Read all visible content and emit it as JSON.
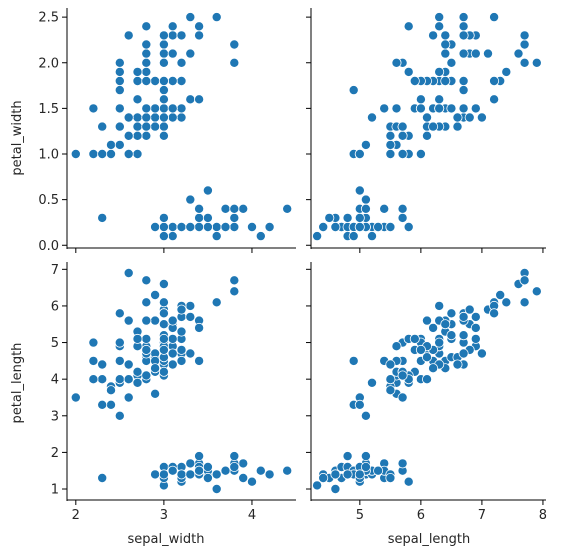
{
  "chart_data": {
    "type": "scatter",
    "point_color": "#1f77b4",
    "grid": false,
    "panels": [
      {
        "id": "pw-vs-sw",
        "x": "sepal_width",
        "y": "petal_width",
        "xlim": [
          1.9,
          4.5
        ],
        "ylim": [
          -0.03,
          2.6
        ],
        "xticks": [],
        "yticks": [
          "0.0",
          "0.5",
          "1.0",
          "1.5",
          "2.0",
          "2.5"
        ]
      },
      {
        "id": "pw-vs-sl",
        "x": "sepal_length",
        "y": "petal_width",
        "xlim": [
          4.2,
          8.05
        ],
        "ylim": [
          -0.03,
          2.6
        ],
        "xticks": [],
        "yticks": []
      },
      {
        "id": "pl-vs-sw",
        "x": "sepal_width",
        "y": "petal_length",
        "xlim": [
          1.9,
          4.5
        ],
        "ylim": [
          0.7,
          7.2
        ],
        "xticks": [
          "2",
          "3",
          "4"
        ],
        "yticks": [
          "1",
          "2",
          "3",
          "4",
          "5",
          "6",
          "7"
        ]
      },
      {
        "id": "pl-vs-sl",
        "x": "sepal_length",
        "y": "petal_length",
        "xlim": [
          4.2,
          8.05
        ],
        "ylim": [
          0.7,
          7.2
        ],
        "xticks": [
          "5",
          "6",
          "7",
          "8"
        ],
        "yticks": []
      }
    ],
    "axis_labels": {
      "x_left": "sepal_width",
      "x_right": "sepal_length",
      "y_top": "petal_width",
      "y_bottom": "petal_length"
    },
    "columns": [
      "sepal_length",
      "sepal_width",
      "petal_length",
      "petal_width"
    ],
    "points": [
      [
        5.1,
        3.5,
        1.4,
        0.2
      ],
      [
        4.9,
        3.0,
        1.4,
        0.2
      ],
      [
        4.7,
        3.2,
        1.3,
        0.2
      ],
      [
        4.6,
        3.1,
        1.5,
        0.2
      ],
      [
        5.0,
        3.6,
        1.4,
        0.2
      ],
      [
        5.4,
        3.9,
        1.7,
        0.4
      ],
      [
        4.6,
        3.4,
        1.4,
        0.3
      ],
      [
        5.0,
        3.4,
        1.5,
        0.2
      ],
      [
        4.4,
        2.9,
        1.4,
        0.2
      ],
      [
        4.9,
        3.1,
        1.5,
        0.1
      ],
      [
        5.4,
        3.7,
        1.5,
        0.2
      ],
      [
        4.8,
        3.4,
        1.6,
        0.2
      ],
      [
        4.8,
        3.0,
        1.4,
        0.1
      ],
      [
        4.3,
        3.0,
        1.1,
        0.1
      ],
      [
        5.8,
        4.0,
        1.2,
        0.2
      ],
      [
        5.7,
        4.4,
        1.5,
        0.4
      ],
      [
        5.4,
        3.9,
        1.3,
        0.4
      ],
      [
        5.1,
        3.5,
        1.4,
        0.3
      ],
      [
        5.7,
        3.8,
        1.7,
        0.3
      ],
      [
        5.1,
        3.8,
        1.5,
        0.3
      ],
      [
        5.4,
        3.4,
        1.7,
        0.2
      ],
      [
        5.1,
        3.7,
        1.5,
        0.4
      ],
      [
        4.6,
        3.6,
        1.0,
        0.2
      ],
      [
        5.1,
        3.3,
        1.7,
        0.5
      ],
      [
        4.8,
        3.4,
        1.9,
        0.2
      ],
      [
        5.0,
        3.0,
        1.6,
        0.2
      ],
      [
        5.0,
        3.4,
        1.6,
        0.4
      ],
      [
        5.2,
        3.5,
        1.5,
        0.2
      ],
      [
        5.2,
        3.4,
        1.4,
        0.2
      ],
      [
        4.7,
        3.2,
        1.6,
        0.2
      ],
      [
        4.8,
        3.1,
        1.6,
        0.2
      ],
      [
        5.4,
        3.4,
        1.5,
        0.4
      ],
      [
        5.2,
        4.1,
        1.5,
        0.1
      ],
      [
        5.5,
        4.2,
        1.4,
        0.2
      ],
      [
        4.9,
        3.1,
        1.5,
        0.2
      ],
      [
        5.0,
        3.2,
        1.2,
        0.2
      ],
      [
        5.5,
        3.5,
        1.3,
        0.2
      ],
      [
        4.9,
        3.6,
        1.4,
        0.1
      ],
      [
        4.4,
        3.0,
        1.3,
        0.2
      ],
      [
        5.1,
        3.4,
        1.5,
        0.2
      ],
      [
        5.0,
        3.5,
        1.3,
        0.3
      ],
      [
        4.5,
        2.3,
        1.3,
        0.3
      ],
      [
        4.4,
        3.2,
        1.3,
        0.2
      ],
      [
        5.0,
        3.5,
        1.6,
        0.6
      ],
      [
        5.1,
        3.8,
        1.9,
        0.4
      ],
      [
        4.8,
        3.0,
        1.4,
        0.3
      ],
      [
        5.1,
        3.8,
        1.6,
        0.2
      ],
      [
        4.6,
        3.2,
        1.4,
        0.2
      ],
      [
        5.3,
        3.7,
        1.5,
        0.2
      ],
      [
        5.0,
        3.3,
        1.4,
        0.2
      ],
      [
        7.0,
        3.2,
        4.7,
        1.4
      ],
      [
        6.4,
        3.2,
        4.5,
        1.5
      ],
      [
        6.9,
        3.1,
        4.9,
        1.5
      ],
      [
        5.5,
        2.3,
        4.0,
        1.3
      ],
      [
        6.5,
        2.8,
        4.6,
        1.5
      ],
      [
        5.7,
        2.8,
        4.5,
        1.3
      ],
      [
        6.3,
        3.3,
        4.7,
        1.6
      ],
      [
        4.9,
        2.4,
        3.3,
        1.0
      ],
      [
        6.6,
        2.9,
        4.6,
        1.3
      ],
      [
        5.2,
        2.7,
        3.9,
        1.4
      ],
      [
        5.0,
        2.0,
        3.5,
        1.0
      ],
      [
        5.9,
        3.0,
        4.2,
        1.5
      ],
      [
        6.0,
        2.2,
        4.0,
        1.0
      ],
      [
        6.1,
        2.9,
        4.7,
        1.4
      ],
      [
        5.6,
        2.9,
        3.6,
        1.3
      ],
      [
        6.7,
        3.1,
        4.4,
        1.4
      ],
      [
        5.6,
        3.0,
        4.5,
        1.5
      ],
      [
        5.8,
        2.7,
        4.1,
        1.0
      ],
      [
        6.2,
        2.2,
        4.5,
        1.5
      ],
      [
        5.6,
        2.5,
        3.9,
        1.1
      ],
      [
        5.9,
        3.2,
        4.8,
        1.8
      ],
      [
        6.1,
        2.8,
        4.0,
        1.3
      ],
      [
        6.3,
        2.5,
        4.9,
        1.5
      ],
      [
        6.1,
        2.8,
        4.7,
        1.2
      ],
      [
        6.4,
        2.9,
        4.3,
        1.3
      ],
      [
        6.6,
        3.0,
        4.4,
        1.4
      ],
      [
        6.8,
        2.8,
        4.8,
        1.4
      ],
      [
        6.7,
        3.0,
        5.0,
        1.7
      ],
      [
        6.0,
        2.9,
        4.5,
        1.5
      ],
      [
        5.7,
        2.6,
        3.5,
        1.0
      ],
      [
        5.5,
        2.4,
        3.8,
        1.1
      ],
      [
        5.5,
        2.4,
        3.7,
        1.0
      ],
      [
        5.8,
        2.7,
        3.9,
        1.2
      ],
      [
        6.0,
        2.7,
        5.1,
        1.6
      ],
      [
        5.4,
        3.0,
        4.5,
        1.5
      ],
      [
        6.0,
        3.4,
        4.5,
        1.6
      ],
      [
        6.7,
        3.1,
        4.7,
        1.5
      ],
      [
        6.3,
        2.3,
        4.4,
        1.3
      ],
      [
        5.6,
        3.0,
        4.1,
        1.3
      ],
      [
        5.5,
        2.5,
        4.0,
        1.3
      ],
      [
        5.5,
        2.6,
        4.4,
        1.2
      ],
      [
        6.1,
        3.0,
        4.6,
        1.4
      ],
      [
        5.8,
        2.6,
        4.0,
        1.2
      ],
      [
        5.0,
        2.3,
        3.3,
        1.0
      ],
      [
        5.6,
        2.7,
        4.2,
        1.3
      ],
      [
        5.7,
        3.0,
        4.2,
        1.2
      ],
      [
        5.7,
        2.9,
        4.2,
        1.3
      ],
      [
        6.2,
        2.9,
        4.3,
        1.3
      ],
      [
        5.1,
        2.5,
        3.0,
        1.1
      ],
      [
        5.7,
        2.8,
        4.1,
        1.3
      ],
      [
        6.3,
        3.3,
        6.0,
        2.5
      ],
      [
        5.8,
        2.7,
        5.1,
        1.9
      ],
      [
        7.1,
        3.0,
        5.9,
        2.1
      ],
      [
        6.3,
        2.9,
        5.6,
        1.8
      ],
      [
        6.5,
        3.0,
        5.8,
        2.2
      ],
      [
        7.6,
        3.0,
        6.6,
        2.1
      ],
      [
        4.9,
        2.5,
        4.5,
        1.7
      ],
      [
        7.3,
        2.9,
        6.3,
        1.8
      ],
      [
        6.7,
        2.5,
        5.8,
        1.8
      ],
      [
        7.2,
        3.6,
        6.1,
        2.5
      ],
      [
        6.5,
        3.2,
        5.1,
        2.0
      ],
      [
        6.4,
        2.7,
        5.3,
        1.9
      ],
      [
        6.8,
        3.0,
        5.5,
        2.1
      ],
      [
        5.7,
        2.5,
        5.0,
        2.0
      ],
      [
        5.8,
        2.8,
        5.1,
        2.4
      ],
      [
        6.4,
        3.2,
        5.3,
        2.3
      ],
      [
        6.5,
        3.0,
        5.5,
        1.8
      ],
      [
        7.7,
        3.8,
        6.7,
        2.2
      ],
      [
        7.7,
        2.6,
        6.9,
        2.3
      ],
      [
        6.0,
        2.2,
        5.0,
        1.5
      ],
      [
        6.9,
        3.2,
        5.7,
        2.3
      ],
      [
        5.6,
        2.8,
        4.9,
        2.0
      ],
      [
        7.7,
        2.8,
        6.7,
        2.0
      ],
      [
        6.3,
        2.7,
        4.9,
        1.8
      ],
      [
        6.7,
        3.3,
        5.7,
        2.1
      ],
      [
        7.2,
        3.2,
        6.0,
        1.8
      ],
      [
        6.2,
        2.8,
        4.8,
        1.8
      ],
      [
        6.1,
        3.0,
        4.9,
        1.8
      ],
      [
        6.4,
        2.8,
        5.6,
        2.1
      ],
      [
        7.2,
        3.0,
        5.8,
        1.6
      ],
      [
        7.4,
        2.8,
        6.1,
        1.9
      ],
      [
        7.9,
        3.8,
        6.4,
        2.0
      ],
      [
        6.4,
        2.8,
        5.6,
        2.2
      ],
      [
        6.3,
        2.8,
        5.1,
        1.5
      ],
      [
        6.1,
        2.6,
        5.6,
        1.4
      ],
      [
        7.7,
        3.0,
        6.1,
        2.3
      ],
      [
        6.3,
        3.4,
        5.6,
        2.4
      ],
      [
        6.4,
        3.1,
        5.5,
        1.8
      ],
      [
        6.0,
        3.0,
        4.8,
        1.8
      ],
      [
        6.9,
        3.1,
        5.4,
        2.1
      ],
      [
        6.7,
        3.1,
        5.6,
        2.4
      ],
      [
        6.9,
        3.1,
        5.1,
        2.3
      ],
      [
        5.8,
        2.7,
        5.1,
        1.9
      ],
      [
        6.8,
        3.2,
        5.9,
        2.3
      ],
      [
        6.7,
        3.3,
        5.7,
        2.5
      ],
      [
        6.7,
        3.0,
        5.2,
        2.3
      ],
      [
        6.3,
        2.5,
        5.0,
        1.9
      ],
      [
        6.5,
        3.0,
        5.2,
        2.0
      ],
      [
        6.2,
        3.4,
        5.4,
        2.3
      ],
      [
        5.9,
        3.0,
        5.1,
        1.8
      ]
    ]
  }
}
